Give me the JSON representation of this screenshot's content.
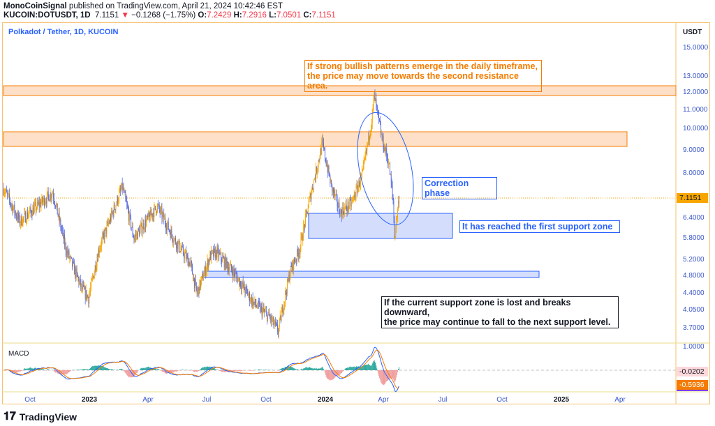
{
  "header": {
    "author": "MonoCoinSignal",
    "published": "published on TradingView.com, April 21, 2024 10:42:46 EST",
    "symbol": "KUCOIN:DOTUSDT, 1D",
    "last": "7.1151",
    "change_icon": "triangle-down",
    "change": "−0.1268 (−1.75%)",
    "o_label": "O:",
    "o": "7.2429",
    "h_label": "H:",
    "h": "7.2916",
    "l_label": "L:",
    "l": "7.0501",
    "c_label": "C:",
    "c": "7.1151"
  },
  "legend": "Polkadot / Tether, 1D, KUCOIN",
  "chart_data": {
    "type": "candlestick",
    "scale": "log",
    "currency": "USDT",
    "y_ticks": [
      "15.0000",
      "13.0000",
      "12.0000",
      "11.0000",
      "10.0000",
      "9.0000",
      "8.0000",
      "6.4000",
      "5.8000",
      "5.2000",
      "4.8000",
      "4.4000",
      "4.0500",
      "3.7000"
    ],
    "x_ticks": [
      "Oct",
      "2023",
      "Apr",
      "Jul",
      "Oct",
      "2024",
      "Apr",
      "Jul",
      "Oct",
      "2025",
      "Apr"
    ],
    "approx_path": [
      [
        "2022-08-21",
        7.45
      ],
      [
        "2022-09-15",
        6.3
      ],
      [
        "2022-10-01",
        6.6
      ],
      [
        "2022-11-05",
        7.3
      ],
      [
        "2022-11-25",
        5.5
      ],
      [
        "2022-12-20",
        4.5
      ],
      [
        "2022-12-30",
        4.3
      ],
      [
        "2023-01-15",
        5.5
      ],
      [
        "2023-02-20",
        7.5
      ],
      [
        "2023-03-10",
        5.8
      ],
      [
        "2023-04-01",
        6.4
      ],
      [
        "2023-04-15",
        6.8
      ],
      [
        "2023-05-10",
        5.8
      ],
      [
        "2023-06-05",
        5.1
      ],
      [
        "2023-06-15",
        4.4
      ],
      [
        "2023-07-05",
        5.3
      ],
      [
        "2023-07-15",
        5.4
      ],
      [
        "2023-08-10",
        4.9
      ],
      [
        "2023-09-10",
        4.2
      ],
      [
        "2023-10-05",
        3.9
      ],
      [
        "2023-10-18",
        3.65
      ],
      [
        "2023-11-05",
        4.9
      ],
      [
        "2023-11-20",
        5.5
      ],
      [
        "2023-12-05",
        7.0
      ],
      [
        "2023-12-25",
        9.3
      ],
      [
        "2024-01-08",
        7.5
      ],
      [
        "2024-01-22",
        6.6
      ],
      [
        "2024-02-08",
        6.9
      ],
      [
        "2024-02-25",
        8.0
      ],
      [
        "2024-03-10",
        10.5
      ],
      [
        "2024-03-14",
        11.8
      ],
      [
        "2024-03-26",
        9.5
      ],
      [
        "2024-04-05",
        8.5
      ],
      [
        "2024-04-12",
        7.0
      ],
      [
        "2024-04-14",
        5.8
      ],
      [
        "2024-04-21",
        7.1151
      ]
    ],
    "last_price": "7.1151",
    "macd": {
      "label": "MACD",
      "ticks": [
        "1.0000"
      ],
      "signal_value": "-0.0202",
      "macd_value": "-0.5936"
    }
  },
  "annotations": {
    "bullish": [
      "If strong bullish patterns emerge in the daily timeframe,",
      "the price may move towards the second resistance area."
    ],
    "correction": "Correction phase",
    "support": "It has reached the first support zone",
    "bearish": [
      "If the current support zone is lost and breaks downward,",
      "the price may continue to fall to the next support level."
    ]
  },
  "colors": {
    "up": "#f7a600",
    "down": "#5b6ee1",
    "resistance": "#fde0c7",
    "support": "#d4defc",
    "text_orange": "#f57c00",
    "text_blue": "#2962ff"
  },
  "footer": {
    "logo": "TradingView"
  }
}
